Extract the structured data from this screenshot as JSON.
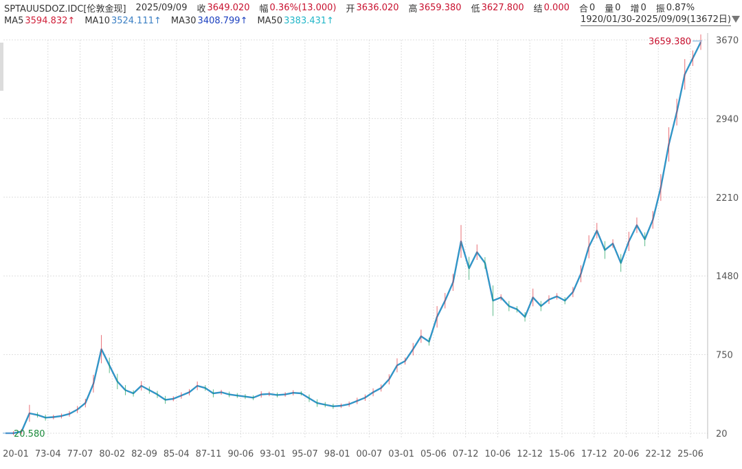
{
  "header": {
    "symbol": "SPTAUUSDOZ.IDC[伦敦金现]",
    "date": "2025/09/09",
    "close_label": "收",
    "close_value": "3649.020",
    "change_label": "幅",
    "change_value": "0.36%(13.000)",
    "open_label": "开",
    "open_value": "3636.020",
    "high_label": "高",
    "high_value": "3659.380",
    "low_label": "低",
    "low_value": "3627.800",
    "settle_label": "结",
    "settle_value": "0.000",
    "oi_label": "合",
    "oi_value": "0",
    "volume_label": "量",
    "volume_value": "0",
    "increase_label": "增",
    "increase_value": "0",
    "amplitude_label": "振",
    "amplitude_value": "0.87%"
  },
  "ma": {
    "ma5_label": "MA5",
    "ma5_value": "3594.832↑",
    "ma10_label": "MA10",
    "ma10_value": "3524.111↑",
    "ma30_label": "MA30",
    "ma30_value": "3408.799↑",
    "ma50_label": "MA50",
    "ma50_value": "3383.431↑"
  },
  "range": "1920/01/30-2025/09/09(13672日)",
  "colors": {
    "up": "#e0303a",
    "down": "#1aa05a",
    "ma5": "#d0203a",
    "ma10": "#3a7fc4",
    "ma30": "#1a3fbf",
    "ma50": "#21b6c8",
    "grid": "#dddddd"
  },
  "chart_data": {
    "type": "line",
    "y_ticks": [
      "3670",
      "2940",
      "2210",
      "1480",
      "750",
      "20"
    ],
    "ylim": [
      20,
      3670
    ],
    "x_ticks": [
      "20-01",
      "73-04",
      "77-07",
      "80-02",
      "82-09",
      "85-04",
      "87-11",
      "90-06",
      "93-01",
      "95-07",
      "98-01",
      "00-07",
      "03-01",
      "05-06",
      "07-12",
      "10-06",
      "12-12",
      "15-06",
      "17-12",
      "20-06",
      "22-12",
      "25-06"
    ],
    "high_marker": "3659.380",
    "low_marker": "20.580",
    "series": [
      {
        "values": [
          20.58,
          20.58,
          35,
          205,
          190,
          165,
          170,
          180,
          200,
          240,
          300,
          480,
          800,
          650,
          500,
          420,
          390,
          460,
          420,
          380,
          330,
          340,
          370,
          400,
          460,
          440,
          390,
          400,
          380,
          370,
          360,
          350,
          380,
          385,
          375,
          380,
          395,
          390,
          345,
          300,
          285,
          270,
          275,
          290,
          320,
          350,
          400,
          440,
          520,
          650,
          690,
          800,
          920,
          870,
          1100,
          1250,
          1420,
          1800,
          1550,
          1700,
          1600,
          1250,
          1280,
          1200,
          1170,
          1100,
          1280,
          1200,
          1260,
          1290,
          1250,
          1330,
          1500,
          1750,
          1900,
          1720,
          1780,
          1600,
          1800,
          1950,
          1820,
          2000,
          2300,
          2700,
          3000,
          3350,
          3500,
          3649.02
        ]
      }
    ]
  }
}
